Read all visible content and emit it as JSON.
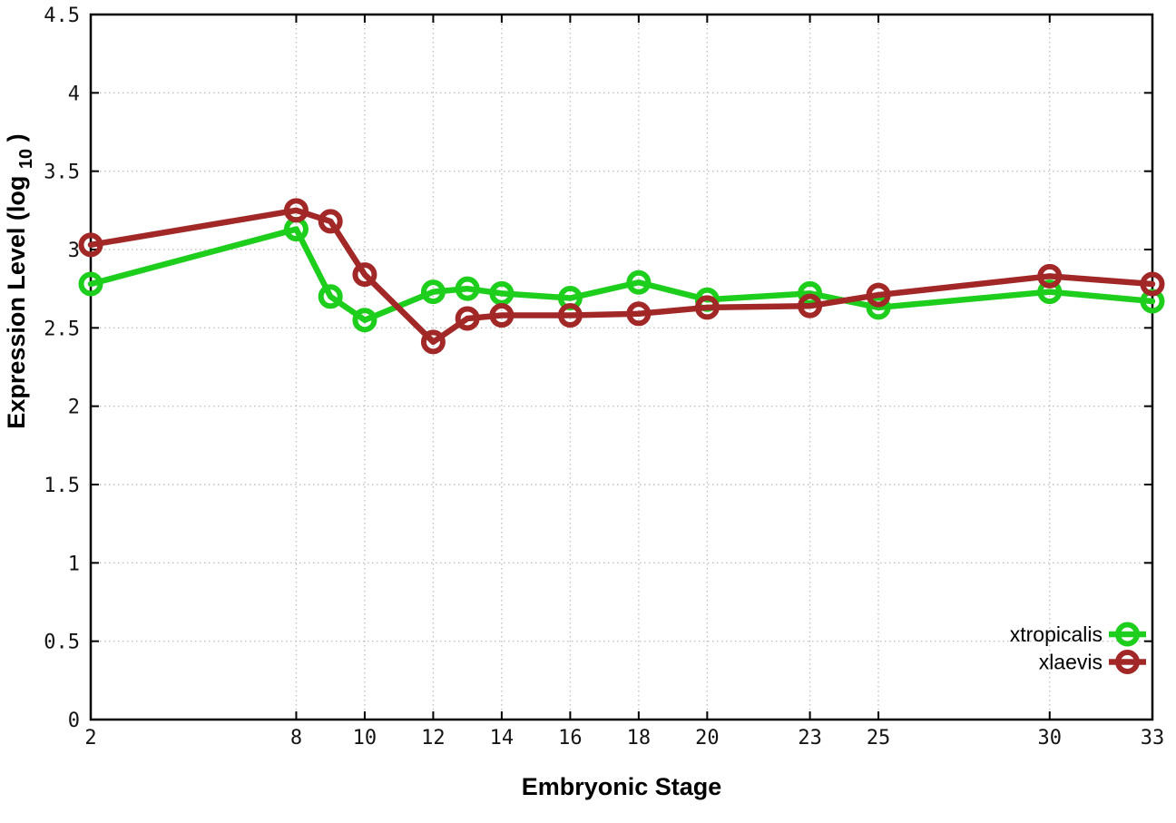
{
  "chart_data": {
    "type": "line",
    "title": "",
    "xlabel": "Embryonic Stage",
    "ylabel": "Expression Level (log10)",
    "ylabel_parts": {
      "pre": "Expression Level (log",
      "sub": "10",
      "post": ")"
    },
    "xlim": [
      2,
      33
    ],
    "ylim": [
      0,
      4.5
    ],
    "grid": true,
    "legend_position": "inside bottom-right",
    "x": [
      2,
      8,
      9,
      10,
      12,
      13,
      14,
      16,
      18,
      20,
      23,
      25,
      30,
      33
    ],
    "xticks": [
      2,
      8,
      10,
      12,
      14,
      16,
      18,
      20,
      23,
      25,
      30,
      33
    ],
    "xtick_labels": [
      "2",
      "8",
      "10",
      "12",
      "14",
      "16",
      "18",
      "20",
      "23",
      "25",
      "30",
      "33"
    ],
    "yticks": [
      0,
      0.5,
      1,
      1.5,
      2,
      2.5,
      3,
      3.5,
      4,
      4.5
    ],
    "ytick_labels": [
      "0",
      "0.5",
      "1",
      "1.5",
      "2",
      "2.5",
      "3",
      "3.5",
      "4",
      "4.5"
    ],
    "series": [
      {
        "name": "xtropicalis",
        "color": "#1dce1d",
        "marker": "open-circle",
        "values": [
          2.78,
          3.13,
          2.7,
          2.55,
          2.73,
          2.75,
          2.72,
          2.69,
          2.79,
          2.68,
          2.72,
          2.63,
          2.73,
          2.67
        ]
      },
      {
        "name": "xlaevis",
        "color": "#a22828",
        "marker": "open-circle",
        "values": [
          3.03,
          3.25,
          3.18,
          2.84,
          2.41,
          2.56,
          2.58,
          2.58,
          2.59,
          2.63,
          2.64,
          2.71,
          2.83,
          2.78
        ]
      }
    ],
    "colors": {
      "grid": "#c2c2c2",
      "axis": "#000000",
      "tick_label": "#141414",
      "background": "#ffffff"
    }
  }
}
